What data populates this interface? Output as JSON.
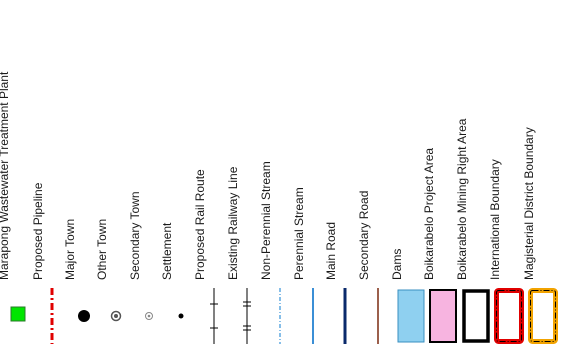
{
  "legend": {
    "items": [
      {
        "label": "Marapong Wastewater Treatment Plant",
        "symbol": "green-square-icon",
        "color": "#00e600"
      },
      {
        "label": "Proposed Pipeline",
        "symbol": "dashed-red-line-icon",
        "color": "#e00000"
      },
      {
        "label": "Major Town",
        "symbol": "large-black-dot-icon",
        "color": "#000000"
      },
      {
        "label": "Other Town",
        "symbol": "ringed-dot-icon",
        "color": "#555555"
      },
      {
        "label": "Secondary Town",
        "symbol": "small-ringed-dot-icon",
        "color": "#888888"
      },
      {
        "label": "Settlement",
        "symbol": "small-dot-icon",
        "color": "#000000"
      },
      {
        "label": "Proposed Rail Route",
        "symbol": "rail-line-single-tick-icon",
        "color": "#000000"
      },
      {
        "label": "Existing Railway Line",
        "symbol": "rail-line-double-tick-icon",
        "color": "#000000"
      },
      {
        "label": "Non-Perennial Stream",
        "symbol": "dotted-blue-line-icon",
        "color": "#5fa8e0"
      },
      {
        "label": "Perennial Stream",
        "symbol": "blue-line-icon",
        "color": "#3b8fd6"
      },
      {
        "label": "Main Road",
        "symbol": "navy-line-icon",
        "color": "#0a2a6b"
      },
      {
        "label": "Secondary Road",
        "symbol": "brown-line-icon",
        "color": "#7a2a10"
      },
      {
        "label": "Dams",
        "symbol": "light-blue-box-icon",
        "color": "#8fd0f0"
      },
      {
        "label": "Boikarabelo Project Area",
        "symbol": "pink-box-icon",
        "color": "#f7b4e0"
      },
      {
        "label": "Boikarabelo Mining Right Area",
        "symbol": "black-outline-box-icon",
        "color": "#000000"
      },
      {
        "label": "International Boundary",
        "symbol": "red-dashed-box-icon",
        "color": "#e00000"
      },
      {
        "label": "Magisterial District Boundary",
        "symbol": "orange-dashed-box-icon",
        "color": "#f2a300"
      }
    ]
  }
}
